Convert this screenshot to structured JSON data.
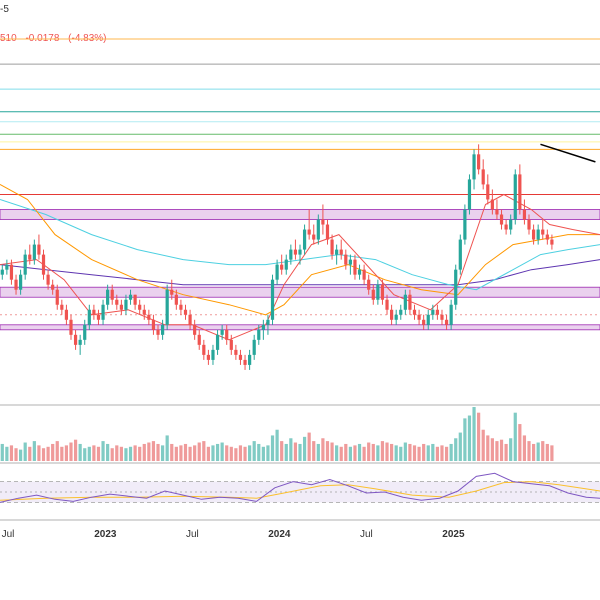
{
  "header": {
    "symbol_suffix": "-5",
    "last_price_fragment": "510",
    "change": "-0.0178",
    "change_pct": "(-4.83%)"
  },
  "colors": {
    "up": "#26a69a",
    "down": "#ef5350",
    "vol_up": "#80cbc4",
    "vol_down": "#ef9a9a",
    "ma_fast": "#ef5350",
    "ma_mid": "#ff9800",
    "ma_slow": "#4dd0e1",
    "ma_long": "#5e35b1",
    "rsi": "#7e57c2",
    "rsi_ma": "#fbc02d",
    "zone": "#e1bee7",
    "zone_border": "#9c27b0"
  },
  "chart_data": {
    "type": "candlestick",
    "title": "",
    "xlabel": "",
    "ylabel": "",
    "x_ticks": [
      {
        "label": "Jul",
        "bold": false
      },
      {
        "label": "2023",
        "bold": true
      },
      {
        "label": "Jul",
        "bold": false
      },
      {
        "label": "2024",
        "bold": true
      },
      {
        "label": "Jul",
        "bold": false
      },
      {
        "label": "2025",
        "bold": true
      }
    ],
    "horizontal_levels": [
      {
        "name": "orange-top",
        "value": 97,
        "color": "#ffb74d"
      },
      {
        "name": "gray",
        "value": 92,
        "color": "#9e9e9e"
      },
      {
        "name": "teal-1",
        "value": 87,
        "color": "#80deea"
      },
      {
        "name": "teal-2",
        "value": 82.5,
        "color": "#26a69a"
      },
      {
        "name": "teal-3",
        "value": 80.5,
        "color": "#b2ebf2"
      },
      {
        "name": "green",
        "value": 78,
        "color": "#66bb6a"
      },
      {
        "name": "yellow",
        "value": 76.5,
        "color": "#fff59d"
      },
      {
        "name": "orange",
        "value": 75,
        "color": "#ffa726"
      },
      {
        "name": "red",
        "value": 66,
        "color": "#e53935"
      },
      {
        "name": "red-dotted",
        "value": 42,
        "color": "#ef9a9a"
      }
    ],
    "zones": [
      {
        "name": "zone-upper",
        "low": 61,
        "high": 63
      },
      {
        "name": "zone-middle",
        "low": 45.5,
        "high": 47.5
      },
      {
        "name": "zone-lower",
        "low": 39,
        "high": 40
      }
    ],
    "trendline": {
      "from": {
        "x": 118,
        "y": 76
      },
      "to": {
        "x": 130,
        "y": 72.5
      }
    },
    "x_range": [
      0,
      131
    ],
    "y_range": [
      25,
      100
    ],
    "candles_ohlc": [
      [
        50,
        52,
        49,
        51
      ],
      [
        51,
        53,
        50,
        52
      ],
      [
        52,
        53,
        48,
        49
      ],
      [
        49,
        50,
        46,
        47
      ],
      [
        47,
        51,
        46,
        50
      ],
      [
        50,
        55,
        49,
        54
      ],
      [
        54,
        56,
        52,
        53
      ],
      [
        53,
        57,
        52,
        56
      ],
      [
        56,
        58,
        53,
        54
      ],
      [
        54,
        55,
        49,
        50
      ],
      [
        50,
        51,
        47,
        48
      ],
      [
        48,
        49,
        46,
        47
      ],
      [
        47,
        48,
        43,
        44
      ],
      [
        44,
        45,
        42,
        43
      ],
      [
        43,
        44,
        40,
        41
      ],
      [
        41,
        42,
        37,
        38
      ],
      [
        38,
        39,
        35,
        36
      ],
      [
        36,
        38,
        34,
        37
      ],
      [
        37,
        41,
        36,
        40
      ],
      [
        40,
        44,
        39,
        43
      ],
      [
        43,
        44,
        41,
        42
      ],
      [
        42,
        43,
        40,
        41
      ],
      [
        41,
        45,
        40,
        44
      ],
      [
        44,
        48,
        43,
        47
      ],
      [
        47,
        48,
        44,
        45
      ],
      [
        45,
        46,
        43,
        44
      ],
      [
        44,
        45,
        42,
        43
      ],
      [
        43,
        46,
        42,
        45
      ],
      [
        45,
        47,
        44,
        46
      ],
      [
        46,
        46,
        43,
        44
      ],
      [
        44,
        45,
        42,
        43
      ],
      [
        43,
        44,
        41,
        42
      ],
      [
        42,
        43,
        40,
        41
      ],
      [
        41,
        42,
        38,
        39
      ],
      [
        39,
        40,
        37,
        38
      ],
      [
        38,
        41,
        37,
        40
      ],
      [
        40,
        48,
        39,
        47
      ],
      [
        47,
        49,
        45,
        46
      ],
      [
        46,
        47,
        43,
        44
      ],
      [
        44,
        45,
        42,
        43
      ],
      [
        43,
        44,
        41,
        42
      ],
      [
        42,
        43,
        39,
        40
      ],
      [
        40,
        41,
        37,
        38
      ],
      [
        38,
        39,
        35,
        36
      ],
      [
        36,
        37,
        33,
        34
      ],
      [
        34,
        35,
        32,
        33
      ],
      [
        33,
        36,
        32,
        35
      ],
      [
        35,
        39,
        34,
        38
      ],
      [
        38,
        40,
        37,
        39
      ],
      [
        39,
        40,
        36,
        37
      ],
      [
        37,
        38,
        34,
        35
      ],
      [
        35,
        36,
        33,
        34
      ],
      [
        34,
        35,
        32,
        33
      ],
      [
        33,
        34,
        31,
        32
      ],
      [
        32,
        35,
        31,
        34
      ],
      [
        34,
        38,
        33,
        37
      ],
      [
        37,
        40,
        36,
        39
      ],
      [
        39,
        41,
        37,
        40
      ],
      [
        40,
        42,
        38,
        41
      ],
      [
        41,
        50,
        40,
        49
      ],
      [
        49,
        53,
        48,
        52
      ],
      [
        52,
        54,
        50,
        51
      ],
      [
        51,
        54,
        50,
        53
      ],
      [
        53,
        56,
        52,
        55
      ],
      [
        55,
        57,
        53,
        54
      ],
      [
        54,
        56,
        52,
        55
      ],
      [
        55,
        60,
        54,
        59
      ],
      [
        59,
        63,
        57,
        58
      ],
      [
        58,
        60,
        56,
        57
      ],
      [
        57,
        62,
        56,
        61
      ],
      [
        61,
        64,
        58,
        60
      ],
      [
        60,
        61,
        56,
        57
      ],
      [
        57,
        58,
        53,
        54
      ],
      [
        54,
        56,
        52,
        55
      ],
      [
        55,
        57,
        53,
        54
      ],
      [
        54,
        55,
        51,
        52
      ],
      [
        52,
        54,
        50,
        53
      ],
      [
        53,
        54,
        49,
        50
      ],
      [
        50,
        52,
        49,
        51
      ],
      [
        51,
        52,
        48,
        49
      ],
      [
        49,
        50,
        46,
        47
      ],
      [
        47,
        48,
        44,
        45
      ],
      [
        45,
        49,
        44,
        48
      ],
      [
        48,
        49,
        44,
        45
      ],
      [
        45,
        46,
        42,
        43
      ],
      [
        43,
        44,
        40,
        41
      ],
      [
        41,
        43,
        40,
        42
      ],
      [
        42,
        44,
        41,
        43
      ],
      [
        43,
        47,
        42,
        46
      ],
      [
        46,
        47,
        42,
        43
      ],
      [
        43,
        44,
        41,
        42
      ],
      [
        42,
        43,
        40,
        41
      ],
      [
        41,
        42,
        39,
        40
      ],
      [
        40,
        43,
        39,
        42
      ],
      [
        42,
        44,
        41,
        43
      ],
      [
        43,
        44,
        41,
        42
      ],
      [
        42,
        43,
        40,
        41
      ],
      [
        41,
        42,
        39,
        40
      ],
      [
        40,
        45,
        39,
        44
      ],
      [
        44,
        52,
        43,
        51
      ],
      [
        51,
        58,
        50,
        57
      ],
      [
        57,
        64,
        56,
        63
      ],
      [
        63,
        70,
        62,
        69
      ],
      [
        69,
        75,
        67,
        74
      ],
      [
        74,
        76,
        70,
        71
      ],
      [
        71,
        73,
        67,
        68
      ],
      [
        68,
        70,
        64,
        65
      ],
      [
        65,
        67,
        62,
        63
      ],
      [
        63,
        65,
        61,
        62
      ],
      [
        62,
        63,
        59,
        60
      ],
      [
        60,
        61,
        58,
        59
      ],
      [
        59,
        62,
        58,
        61
      ],
      [
        61,
        71,
        60,
        70
      ],
      [
        70,
        72,
        62,
        63
      ],
      [
        63,
        65,
        60,
        61
      ],
      [
        61,
        62,
        58,
        59
      ],
      [
        59,
        60,
        56,
        57
      ],
      [
        57,
        60,
        56,
        59
      ],
      [
        59,
        61,
        57,
        58
      ],
      [
        58,
        59,
        56,
        57
      ],
      [
        57,
        58,
        55,
        56
      ]
    ],
    "ma_fast_values": [
      [
        0,
        52
      ],
      [
        8,
        53
      ],
      [
        14,
        49
      ],
      [
        20,
        42
      ],
      [
        28,
        43
      ],
      [
        36,
        40
      ],
      [
        42,
        40
      ],
      [
        50,
        37
      ],
      [
        58,
        40
      ],
      [
        62,
        48
      ],
      [
        68,
        56
      ],
      [
        74,
        58
      ],
      [
        80,
        52
      ],
      [
        86,
        46
      ],
      [
        94,
        43
      ],
      [
        100,
        48
      ],
      [
        106,
        64
      ],
      [
        110,
        66
      ],
      [
        116,
        63
      ],
      [
        120,
        60
      ],
      [
        125,
        59
      ],
      [
        131,
        58
      ]
    ],
    "ma_mid_values": [
      [
        0,
        68
      ],
      [
        6,
        65
      ],
      [
        12,
        58
      ],
      [
        20,
        53
      ],
      [
        30,
        49
      ],
      [
        40,
        46
      ],
      [
        50,
        44
      ],
      [
        58,
        42
      ],
      [
        62,
        44
      ],
      [
        68,
        50
      ],
      [
        76,
        52
      ],
      [
        84,
        49
      ],
      [
        92,
        47
      ],
      [
        100,
        46
      ],
      [
        106,
        52
      ],
      [
        112,
        56
      ],
      [
        118,
        57
      ],
      [
        124,
        58
      ],
      [
        131,
        58
      ]
    ],
    "ma_slow_values": [
      [
        0,
        65
      ],
      [
        10,
        62
      ],
      [
        20,
        58
      ],
      [
        30,
        55
      ],
      [
        40,
        53
      ],
      [
        50,
        52
      ],
      [
        58,
        52
      ],
      [
        66,
        53
      ],
      [
        74,
        54
      ],
      [
        82,
        53
      ],
      [
        90,
        50
      ],
      [
        98,
        48
      ],
      [
        104,
        47
      ],
      [
        112,
        51
      ],
      [
        118,
        54
      ],
      [
        124,
        55
      ],
      [
        131,
        56
      ]
    ],
    "ma_long_values": [
      [
        0,
        52
      ],
      [
        10,
        51
      ],
      [
        20,
        50
      ],
      [
        30,
        49
      ],
      [
        40,
        48
      ],
      [
        50,
        48
      ],
      [
        60,
        48
      ],
      [
        70,
        48
      ],
      [
        80,
        48
      ],
      [
        90,
        48
      ],
      [
        100,
        48
      ],
      [
        108,
        49
      ],
      [
        116,
        51
      ],
      [
        124,
        52
      ],
      [
        131,
        53
      ]
    ],
    "volume": [
      12,
      10,
      11,
      9,
      8,
      13,
      10,
      14,
      11,
      9,
      10,
      12,
      14,
      10,
      11,
      13,
      15,
      12,
      9,
      10,
      11,
      10,
      14,
      12,
      9,
      11,
      10,
      9,
      10,
      11,
      10,
      12,
      13,
      14,
      12,
      11,
      18,
      12,
      10,
      11,
      12,
      10,
      11,
      13,
      14,
      10,
      11,
      12,
      13,
      11,
      10,
      9,
      11,
      10,
      11,
      14,
      12,
      10,
      11,
      18,
      22,
      14,
      12,
      16,
      13,
      12,
      17,
      20,
      14,
      12,
      16,
      14,
      13,
      11,
      10,
      12,
      10,
      11,
      12,
      10,
      13,
      12,
      11,
      14,
      13,
      12,
      11,
      10,
      13,
      12,
      11,
      10,
      12,
      11,
      12,
      10,
      11,
      10,
      12,
      16,
      20,
      30,
      32,
      38,
      34,
      22,
      18,
      16,
      14,
      15,
      12,
      16,
      34,
      26,
      18,
      14,
      12,
      13,
      14,
      12,
      11
    ],
    "rsi": [
      [
        0,
        30
      ],
      [
        4,
        38
      ],
      [
        8,
        44
      ],
      [
        12,
        36
      ],
      [
        16,
        32
      ],
      [
        20,
        40
      ],
      [
        24,
        46
      ],
      [
        28,
        42
      ],
      [
        32,
        38
      ],
      [
        36,
        52
      ],
      [
        40,
        44
      ],
      [
        44,
        36
      ],
      [
        48,
        40
      ],
      [
        52,
        38
      ],
      [
        56,
        32
      ],
      [
        60,
        58
      ],
      [
        64,
        70
      ],
      [
        68,
        64
      ],
      [
        72,
        74
      ],
      [
        76,
        62
      ],
      [
        80,
        48
      ],
      [
        84,
        50
      ],
      [
        88,
        40
      ],
      [
        92,
        34
      ],
      [
        96,
        38
      ],
      [
        100,
        52
      ],
      [
        104,
        80
      ],
      [
        108,
        86
      ],
      [
        112,
        70
      ],
      [
        116,
        66
      ],
      [
        120,
        62
      ],
      [
        124,
        48
      ],
      [
        128,
        40
      ],
      [
        131,
        38
      ]
    ],
    "rsi_ma": [
      [
        0,
        34
      ],
      [
        10,
        38
      ],
      [
        20,
        40
      ],
      [
        30,
        40
      ],
      [
        40,
        42
      ],
      [
        50,
        40
      ],
      [
        56,
        38
      ],
      [
        62,
        48
      ],
      [
        70,
        62
      ],
      [
        76,
        64
      ],
      [
        82,
        56
      ],
      [
        90,
        44
      ],
      [
        98,
        40
      ],
      [
        104,
        52
      ],
      [
        110,
        68
      ],
      [
        116,
        70
      ],
      [
        122,
        64
      ],
      [
        128,
        56
      ],
      [
        131,
        52
      ]
    ]
  }
}
